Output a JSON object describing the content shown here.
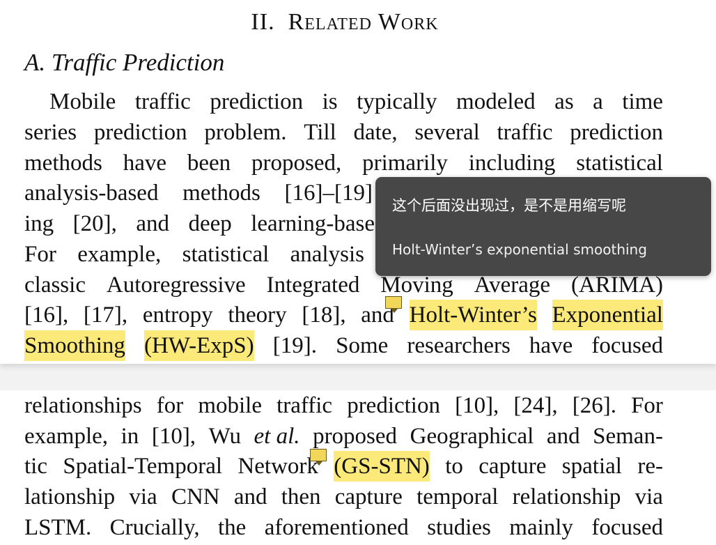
{
  "section_heading": {
    "number": "II.",
    "title": "Related Work"
  },
  "subsection_heading": "A. Traffic Prediction",
  "page1_lines": [
    [
      "Mobile",
      "traffic",
      "prediction",
      "is",
      "typically",
      "modeled",
      "as",
      "a",
      "time"
    ],
    [
      "series",
      "prediction",
      "problem.",
      "Till",
      "date,",
      "several",
      "traffic",
      "prediction"
    ],
    [
      "methods",
      "have",
      "been",
      "proposed,",
      "primarily",
      "including",
      "statistical"
    ],
    [
      "analysis-based",
      "methods",
      "[16]–[19]"
    ],
    [
      "ing",
      "[20],",
      "and",
      "deep",
      "learning-base"
    ],
    [
      "For",
      "example,",
      "statistical",
      "analysis"
    ],
    [
      "classic",
      "Autoregressive",
      "Integrated",
      "Moving",
      "Average",
      "(ARIMA)"
    ],
    [
      "[16],",
      "[17],",
      "entropy",
      "theory",
      "[18],",
      "and",
      "Holt-Winter’s",
      "Exponential"
    ],
    [
      "Smoothing",
      "(HW-ExpS)",
      "[19].",
      "Some",
      "researchers",
      "have",
      "focused"
    ]
  ],
  "page2_lines": [
    [
      "relationships",
      "for",
      "mobile",
      "traffic",
      "prediction",
      "[10],",
      "[24],",
      "[26].",
      "For"
    ],
    [
      "example,",
      "in",
      "[10],",
      "Wu",
      "et al.",
      "proposed",
      "Geographical",
      "and",
      "Seman-"
    ],
    [
      "tic",
      "Spatial-Temporal",
      "Network",
      "(GS-STN)",
      "to",
      "capture",
      "spatial",
      "re-"
    ],
    [
      "lationship",
      "via",
      "CNN",
      "and",
      "then",
      "capture",
      "temporal",
      "relationship",
      "via"
    ],
    [
      "LSTM.",
      "Crucially,",
      "the",
      "aforementioned",
      "studies",
      "mainly",
      "focused"
    ]
  ],
  "tooltip": {
    "comment": "这个后面没出现过，是不是用缩写呢",
    "quote": "Holt-Winter’s exponential smoothing"
  },
  "highlight_color": "#fbe97a",
  "tooltip_bg": "#474747",
  "note_marker_color": "#f1d65a"
}
